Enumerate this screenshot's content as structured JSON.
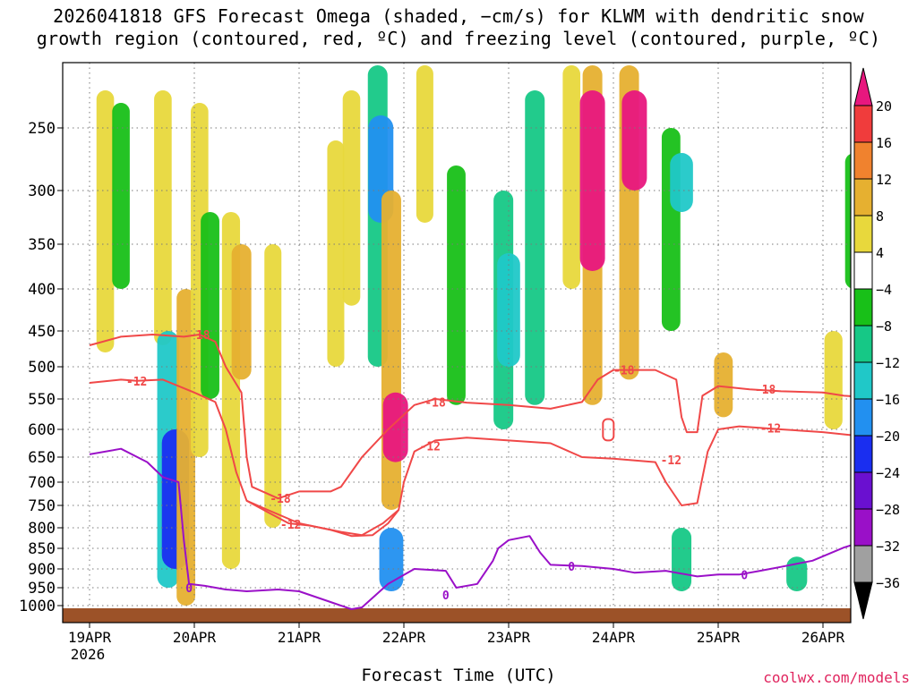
{
  "title_line1": "2026041818 GFS Forecast Omega (shaded, −cm/s) for KLWM with dendritic snow",
  "title_line2": "growth region (contoured, red, ºC) and freezing level (contoured, purple, ºC)",
  "credit": "coolwx.com/models",
  "colors": {
    "isotherm": "#f04848",
    "freezing": "#9a10c8",
    "ground": "#9c5228",
    "grid": "#7a7a7a"
  },
  "chart_data": {
    "type": "heatmap",
    "title": "2026041818 GFS Forecast Omega (shaded, −cm/s) for KLWM with dendritic snow growth region (contoured, red, ºC) and freezing level (contoured, purple, ºC)",
    "xlabel": "Forecast Time (UTC)",
    "ylabel": "",
    "x_ticks": [
      "19APR",
      "20APR",
      "21APR",
      "22APR",
      "23APR",
      "24APR",
      "25APR",
      "26APR"
    ],
    "x_sublabel": "2026",
    "x_range_days": [
      0,
      7.5
    ],
    "y_ticks": [
      250,
      300,
      350,
      400,
      450,
      500,
      550,
      600,
      650,
      700,
      750,
      800,
      850,
      900,
      950,
      1000
    ],
    "y_range_hpa": [
      1015,
      200
    ],
    "colorbar": {
      "levels": [
        20,
        16,
        12,
        8,
        4,
        -4,
        -8,
        -12,
        -16,
        -20,
        -24,
        -28,
        -32,
        -36
      ],
      "colors": [
        "#e8177e",
        "#f03c3c",
        "#f0822e",
        "#e6b030",
        "#e8d83c",
        "#ffffff",
        "#18c018",
        "#16c886",
        "#20c8c8",
        "#2290f0",
        "#1a2ef0",
        "#6a10d0",
        "#9a10c8",
        "#a0a0a0",
        "#000000"
      ]
    },
    "contours": [
      {
        "name": "-18C isotherm (upper)",
        "label": "-18",
        "label_at": [
          1.05,
          455
        ],
        "points": [
          [
            0,
            470
          ],
          [
            0.3,
            458
          ],
          [
            0.6,
            455
          ],
          [
            0.9,
            458
          ],
          [
            1.05,
            455
          ],
          [
            1.2,
            465
          ],
          [
            1.3,
            500
          ],
          [
            1.45,
            540
          ],
          [
            1.5,
            650
          ],
          [
            1.55,
            710
          ],
          [
            1.8,
            735
          ],
          [
            2.0,
            720
          ],
          [
            2.3,
            720
          ],
          [
            2.4,
            710
          ],
          [
            2.6,
            650
          ],
          [
            2.85,
            600
          ],
          [
            3.1,
            560
          ],
          [
            3.3,
            550
          ],
          [
            3.6,
            556
          ],
          [
            4.0,
            560
          ],
          [
            4.4,
            566
          ],
          [
            4.7,
            555
          ],
          [
            4.85,
            520
          ],
          [
            5.0,
            505
          ],
          [
            5.4,
            505
          ],
          [
            5.6,
            520
          ],
          [
            5.65,
            580
          ],
          [
            5.7,
            605
          ],
          [
            5.8,
            605
          ],
          [
            5.85,
            545
          ],
          [
            6.0,
            530
          ],
          [
            6.3,
            535
          ],
          [
            6.6,
            538
          ],
          [
            7.0,
            540
          ],
          [
            7.2,
            545
          ],
          [
            7.5,
            548
          ]
        ]
      },
      {
        "name": "-12C isotherm (upper)",
        "label": "-12",
        "label_at": [
          0.45,
          522
        ],
        "points": [
          [
            0,
            525
          ],
          [
            0.3,
            520
          ],
          [
            0.45,
            522
          ],
          [
            0.7,
            520
          ],
          [
            1.0,
            540
          ],
          [
            1.2,
            555
          ],
          [
            1.3,
            600
          ],
          [
            1.4,
            680
          ],
          [
            1.5,
            740
          ],
          [
            1.7,
            760
          ],
          [
            2.0,
            790
          ],
          [
            2.3,
            805
          ],
          [
            2.5,
            820
          ],
          [
            2.7,
            818
          ],
          [
            2.85,
            790
          ],
          [
            2.95,
            760
          ],
          [
            3.0,
            700
          ]
        ]
      },
      {
        "name": "-12C isotherm (mid)",
        "label": "-12",
        "label_at": [
          3.2,
          632
        ],
        "points": [
          [
            3.0,
            700
          ],
          [
            3.1,
            640
          ],
          [
            3.3,
            620
          ],
          [
            3.6,
            615
          ],
          [
            4.0,
            620
          ],
          [
            4.4,
            625
          ],
          [
            4.7,
            650
          ],
          [
            5.0,
            653
          ],
          [
            5.4,
            660
          ],
          [
            5.5,
            700
          ],
          [
            5.65,
            750
          ],
          [
            5.8,
            745
          ],
          [
            5.9,
            640
          ],
          [
            6.0,
            600
          ],
          [
            6.2,
            595
          ],
          [
            6.6,
            600
          ],
          [
            7.0,
            605
          ],
          [
            7.5,
            615
          ]
        ]
      },
      {
        "name": "-12C isotherm (low)",
        "label": "-12",
        "label_at": [
          1.9,
          790
        ],
        "points": [
          [
            1.5,
            740
          ],
          [
            1.7,
            765
          ],
          [
            1.9,
            790
          ],
          [
            2.1,
            795
          ],
          [
            2.4,
            810
          ],
          [
            2.6,
            818
          ],
          [
            2.8,
            790
          ],
          [
            2.95,
            760
          ]
        ]
      },
      {
        "name": "0C freezing level",
        "label": "0",
        "label_at": [
          0.95,
          950
        ],
        "points": [
          [
            0,
            645
          ],
          [
            0.3,
            635
          ],
          [
            0.55,
            660
          ],
          [
            0.7,
            690
          ],
          [
            0.85,
            700
          ],
          [
            0.9,
            830
          ],
          [
            0.95,
            940
          ],
          [
            1.1,
            945
          ],
          [
            1.3,
            955
          ],
          [
            1.5,
            960
          ],
          [
            1.8,
            955
          ],
          [
            2.0,
            960
          ],
          [
            2.3,
            990
          ],
          [
            2.5,
            1010
          ],
          [
            2.6,
            1005
          ],
          [
            2.85,
            940
          ],
          [
            3.1,
            900
          ],
          [
            3.4,
            905
          ],
          [
            3.5,
            950
          ],
          [
            3.7,
            940
          ],
          [
            3.85,
            880
          ],
          [
            3.9,
            850
          ],
          [
            4.0,
            830
          ],
          [
            4.2,
            820
          ],
          [
            4.3,
            860
          ],
          [
            4.4,
            890
          ],
          [
            4.7,
            893
          ],
          [
            5.0,
            900
          ],
          [
            5.2,
            910
          ],
          [
            5.5,
            905
          ],
          [
            5.8,
            920
          ],
          [
            6.0,
            915
          ],
          [
            6.2,
            915
          ],
          [
            6.4,
            905
          ],
          [
            6.6,
            895
          ],
          [
            6.9,
            880
          ],
          [
            7.2,
            848
          ],
          [
            7.3,
            840
          ],
          [
            7.5,
            848
          ]
        ]
      }
    ],
    "contour_labels": [
      {
        "text": "-18",
        "day": 1.05,
        "hpa": 455
      },
      {
        "text": "-12",
        "day": 0.45,
        "hpa": 522
      },
      {
        "text": "-18",
        "day": 1.82,
        "hpa": 735
      },
      {
        "text": "-12",
        "day": 1.92,
        "hpa": 792
      },
      {
        "text": "-18",
        "day": 3.3,
        "hpa": 555
      },
      {
        "text": "-12",
        "day": 3.25,
        "hpa": 630
      },
      {
        "text": "-18",
        "day": 5.1,
        "hpa": 505
      },
      {
        "text": "-12",
        "day": 5.55,
        "hpa": 655
      },
      {
        "text": "-18",
        "day": 6.45,
        "hpa": 535
      },
      {
        "text": "-12",
        "day": 6.5,
        "hpa": 598
      },
      {
        "text": "0",
        "day": 0.95,
        "hpa": 950
      },
      {
        "text": "0",
        "day": 3.4,
        "hpa": 970
      },
      {
        "text": "0",
        "day": 4.6,
        "hpa": 893
      },
      {
        "text": "0",
        "day": 6.25,
        "hpa": 915
      }
    ],
    "omega_features": [
      {
        "day": 0.15,
        "hpa_top": 220,
        "hpa_bot": 480,
        "value": 6
      },
      {
        "day": 0.3,
        "hpa_top": 230,
        "hpa_bot": 400,
        "value": -6
      },
      {
        "day": 0.7,
        "hpa_top": 220,
        "hpa_bot": 470,
        "value": 6
      },
      {
        "day": 0.75,
        "hpa_top": 450,
        "hpa_bot": 950,
        "value": -14
      },
      {
        "day": 0.82,
        "hpa_top": 600,
        "hpa_bot": 900,
        "value": -24
      },
      {
        "day": 0.92,
        "hpa_top": 400,
        "hpa_bot": 1000,
        "value": 8
      },
      {
        "day": 1.05,
        "hpa_top": 230,
        "hpa_bot": 650,
        "value": 6
      },
      {
        "day": 1.15,
        "hpa_top": 320,
        "hpa_bot": 550,
        "value": -8
      },
      {
        "day": 1.35,
        "hpa_top": 320,
        "hpa_bot": 900,
        "value": 7
      },
      {
        "day": 1.45,
        "hpa_top": 350,
        "hpa_bot": 520,
        "value": 10
      },
      {
        "day": 1.75,
        "hpa_top": 350,
        "hpa_bot": 800,
        "value": 5
      },
      {
        "day": 2.35,
        "hpa_top": 260,
        "hpa_bot": 500,
        "value": 5
      },
      {
        "day": 2.5,
        "hpa_top": 220,
        "hpa_bot": 420,
        "value": 6
      },
      {
        "day": 2.75,
        "hpa_top": 200,
        "hpa_bot": 500,
        "value": -10
      },
      {
        "day": 2.78,
        "hpa_top": 240,
        "hpa_bot": 330,
        "value": -20
      },
      {
        "day": 2.88,
        "hpa_top": 300,
        "hpa_bot": 760,
        "value": 10
      },
      {
        "day": 2.92,
        "hpa_top": 540,
        "hpa_bot": 660,
        "value": 20
      },
      {
        "day": 2.88,
        "hpa_top": 800,
        "hpa_bot": 960,
        "value": -18
      },
      {
        "day": 3.2,
        "hpa_top": 200,
        "hpa_bot": 330,
        "value": 5
      },
      {
        "day": 3.5,
        "hpa_top": 280,
        "hpa_bot": 560,
        "value": -8
      },
      {
        "day": 3.95,
        "hpa_top": 300,
        "hpa_bot": 600,
        "value": -10
      },
      {
        "day": 4.0,
        "hpa_top": 360,
        "hpa_bot": 500,
        "value": -16
      },
      {
        "day": 4.25,
        "hpa_top": 220,
        "hpa_bot": 560,
        "value": -10
      },
      {
        "day": 4.6,
        "hpa_top": 200,
        "hpa_bot": 400,
        "value": 6
      },
      {
        "day": 4.8,
        "hpa_top": 200,
        "hpa_bot": 560,
        "value": 10
      },
      {
        "day": 4.8,
        "hpa_top": 220,
        "hpa_bot": 380,
        "value": 20
      },
      {
        "day": 5.15,
        "hpa_top": 200,
        "hpa_bot": 520,
        "value": 10
      },
      {
        "day": 5.2,
        "hpa_top": 220,
        "hpa_bot": 300,
        "value": 20
      },
      {
        "day": 5.55,
        "hpa_top": 250,
        "hpa_bot": 450,
        "value": -8
      },
      {
        "day": 5.65,
        "hpa_top": 270,
        "hpa_bot": 320,
        "value": -16
      },
      {
        "day": 6.05,
        "hpa_top": 480,
        "hpa_bot": 580,
        "value": 8
      },
      {
        "day": 5.65,
        "hpa_top": 800,
        "hpa_bot": 960,
        "value": -10
      },
      {
        "day": 7.1,
        "hpa_top": 450,
        "hpa_bot": 600,
        "value": 7
      },
      {
        "day": 7.3,
        "hpa_top": 270,
        "hpa_bot": 400,
        "value": -8
      },
      {
        "day": 6.75,
        "hpa_top": 870,
        "hpa_bot": 960,
        "value": -12
      }
    ]
  }
}
